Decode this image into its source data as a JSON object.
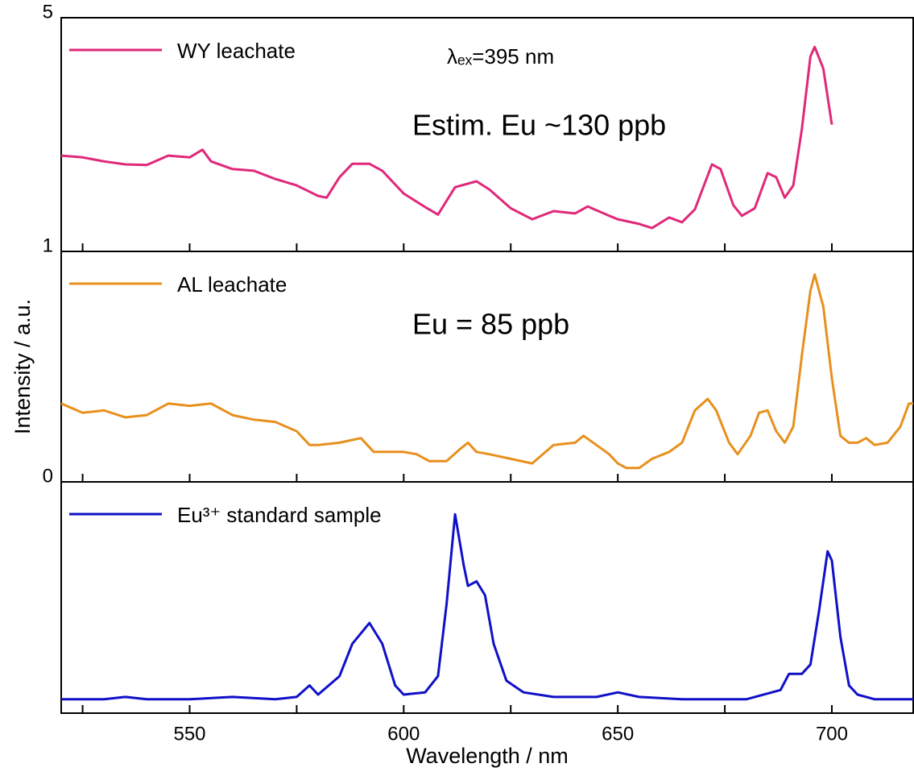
{
  "chart_data": [
    {
      "type": "line",
      "ylim": [
        1,
        5
      ],
      "yticks": [
        5
      ],
      "legend": "upper left",
      "annotations": [
        {
          "text": "λₑₓ=395 nm",
          "color": "#000000"
        },
        {
          "text": "Estim. Eu ~130 ppb",
          "color": "#ff0000"
        }
      ],
      "x": [
        520,
        525,
        530,
        535,
        540,
        545,
        550,
        553,
        555,
        560,
        565,
        570,
        575,
        580,
        582,
        585,
        588,
        592,
        595,
        600,
        605,
        608,
        612,
        617,
        620,
        625,
        630,
        635,
        640,
        643,
        648,
        650,
        655,
        658,
        662,
        665,
        668,
        672,
        674,
        677,
        679,
        682,
        685,
        687,
        689,
        691,
        693,
        695,
        696,
        698,
        700
      ],
      "series": [
        {
          "name": "WY leachate",
          "color": "#e0287a",
          "values": [
            2.64,
            2.61,
            2.54,
            2.49,
            2.48,
            2.64,
            2.61,
            2.74,
            2.54,
            2.41,
            2.38,
            2.24,
            2.13,
            1.95,
            1.92,
            2.27,
            2.5,
            2.5,
            2.38,
            1.99,
            1.76,
            1.63,
            2.1,
            2.2,
            2.06,
            1.74,
            1.55,
            1.69,
            1.65,
            1.77,
            1.61,
            1.55,
            1.47,
            1.4,
            1.58,
            1.5,
            1.72,
            2.49,
            2.41,
            1.79,
            1.61,
            1.74,
            2.34,
            2.27,
            1.92,
            2.13,
            3.1,
            4.34,
            4.5,
            4.13,
            3.17
          ]
        }
      ]
    },
    {
      "type": "line",
      "ylim": [
        0,
        1
      ],
      "yticks": [
        0,
        1
      ],
      "legend": "upper left",
      "ylabel": "Intensity / a.u.",
      "annotations": [
        {
          "text": "Eu = 85 ppb",
          "color": "#ff0000"
        }
      ],
      "x": [
        520,
        525,
        530,
        535,
        540,
        545,
        550,
        555,
        560,
        565,
        570,
        575,
        578,
        580,
        585,
        590,
        593,
        597,
        600,
        603,
        606,
        610,
        613,
        615,
        617,
        620,
        625,
        630,
        635,
        640,
        642,
        645,
        648,
        650,
        652,
        655,
        658,
        662,
        665,
        668,
        671,
        673,
        676,
        678,
        681,
        683,
        685,
        687,
        689,
        691,
        693,
        695,
        696,
        698,
        700,
        702,
        704,
        706,
        708,
        710,
        713,
        716,
        718,
        719
      ],
      "series": [
        {
          "name": "AL leachate",
          "color": "#e8901e",
          "values": [
            0.34,
            0.3,
            0.31,
            0.28,
            0.29,
            0.34,
            0.33,
            0.34,
            0.29,
            0.27,
            0.26,
            0.22,
            0.16,
            0.16,
            0.17,
            0.19,
            0.13,
            0.13,
            0.13,
            0.12,
            0.09,
            0.09,
            0.14,
            0.17,
            0.13,
            0.12,
            0.1,
            0.08,
            0.16,
            0.17,
            0.2,
            0.16,
            0.12,
            0.08,
            0.06,
            0.06,
            0.1,
            0.13,
            0.17,
            0.31,
            0.36,
            0.31,
            0.17,
            0.12,
            0.2,
            0.3,
            0.31,
            0.22,
            0.17,
            0.24,
            0.55,
            0.83,
            0.9,
            0.76,
            0.45,
            0.2,
            0.17,
            0.17,
            0.19,
            0.16,
            0.17,
            0.24,
            0.34,
            0.34
          ]
        }
      ]
    },
    {
      "type": "line",
      "ylim": [
        0,
        1
      ],
      "legend": "upper left",
      "xlabel": "Wavelength / nm",
      "xlim": [
        520,
        719
      ],
      "xticks": [
        550,
        600,
        650,
        700
      ],
      "xticks_minor": [
        525,
        575,
        625,
        675
      ],
      "x": [
        520,
        530,
        535,
        540,
        550,
        560,
        570,
        575,
        578,
        580,
        585,
        588,
        592,
        595,
        598,
        600,
        605,
        608,
        610,
        612,
        614,
        615,
        617,
        619,
        621,
        624,
        628,
        635,
        645,
        650,
        655,
        665,
        680,
        688,
        690,
        693,
        695,
        697,
        699,
        700,
        702,
        704,
        706,
        710,
        719
      ],
      "series": [
        {
          "name": "Eu³⁺ standard sample",
          "color": "#1010c8",
          "values": [
            0.06,
            0.06,
            0.07,
            0.06,
            0.06,
            0.07,
            0.06,
            0.07,
            0.12,
            0.08,
            0.16,
            0.3,
            0.39,
            0.3,
            0.12,
            0.08,
            0.09,
            0.16,
            0.47,
            0.86,
            0.64,
            0.55,
            0.57,
            0.51,
            0.3,
            0.14,
            0.09,
            0.07,
            0.07,
            0.09,
            0.07,
            0.06,
            0.06,
            0.1,
            0.17,
            0.17,
            0.21,
            0.44,
            0.7,
            0.66,
            0.33,
            0.12,
            0.08,
            0.06,
            0.06
          ]
        }
      ]
    }
  ]
}
